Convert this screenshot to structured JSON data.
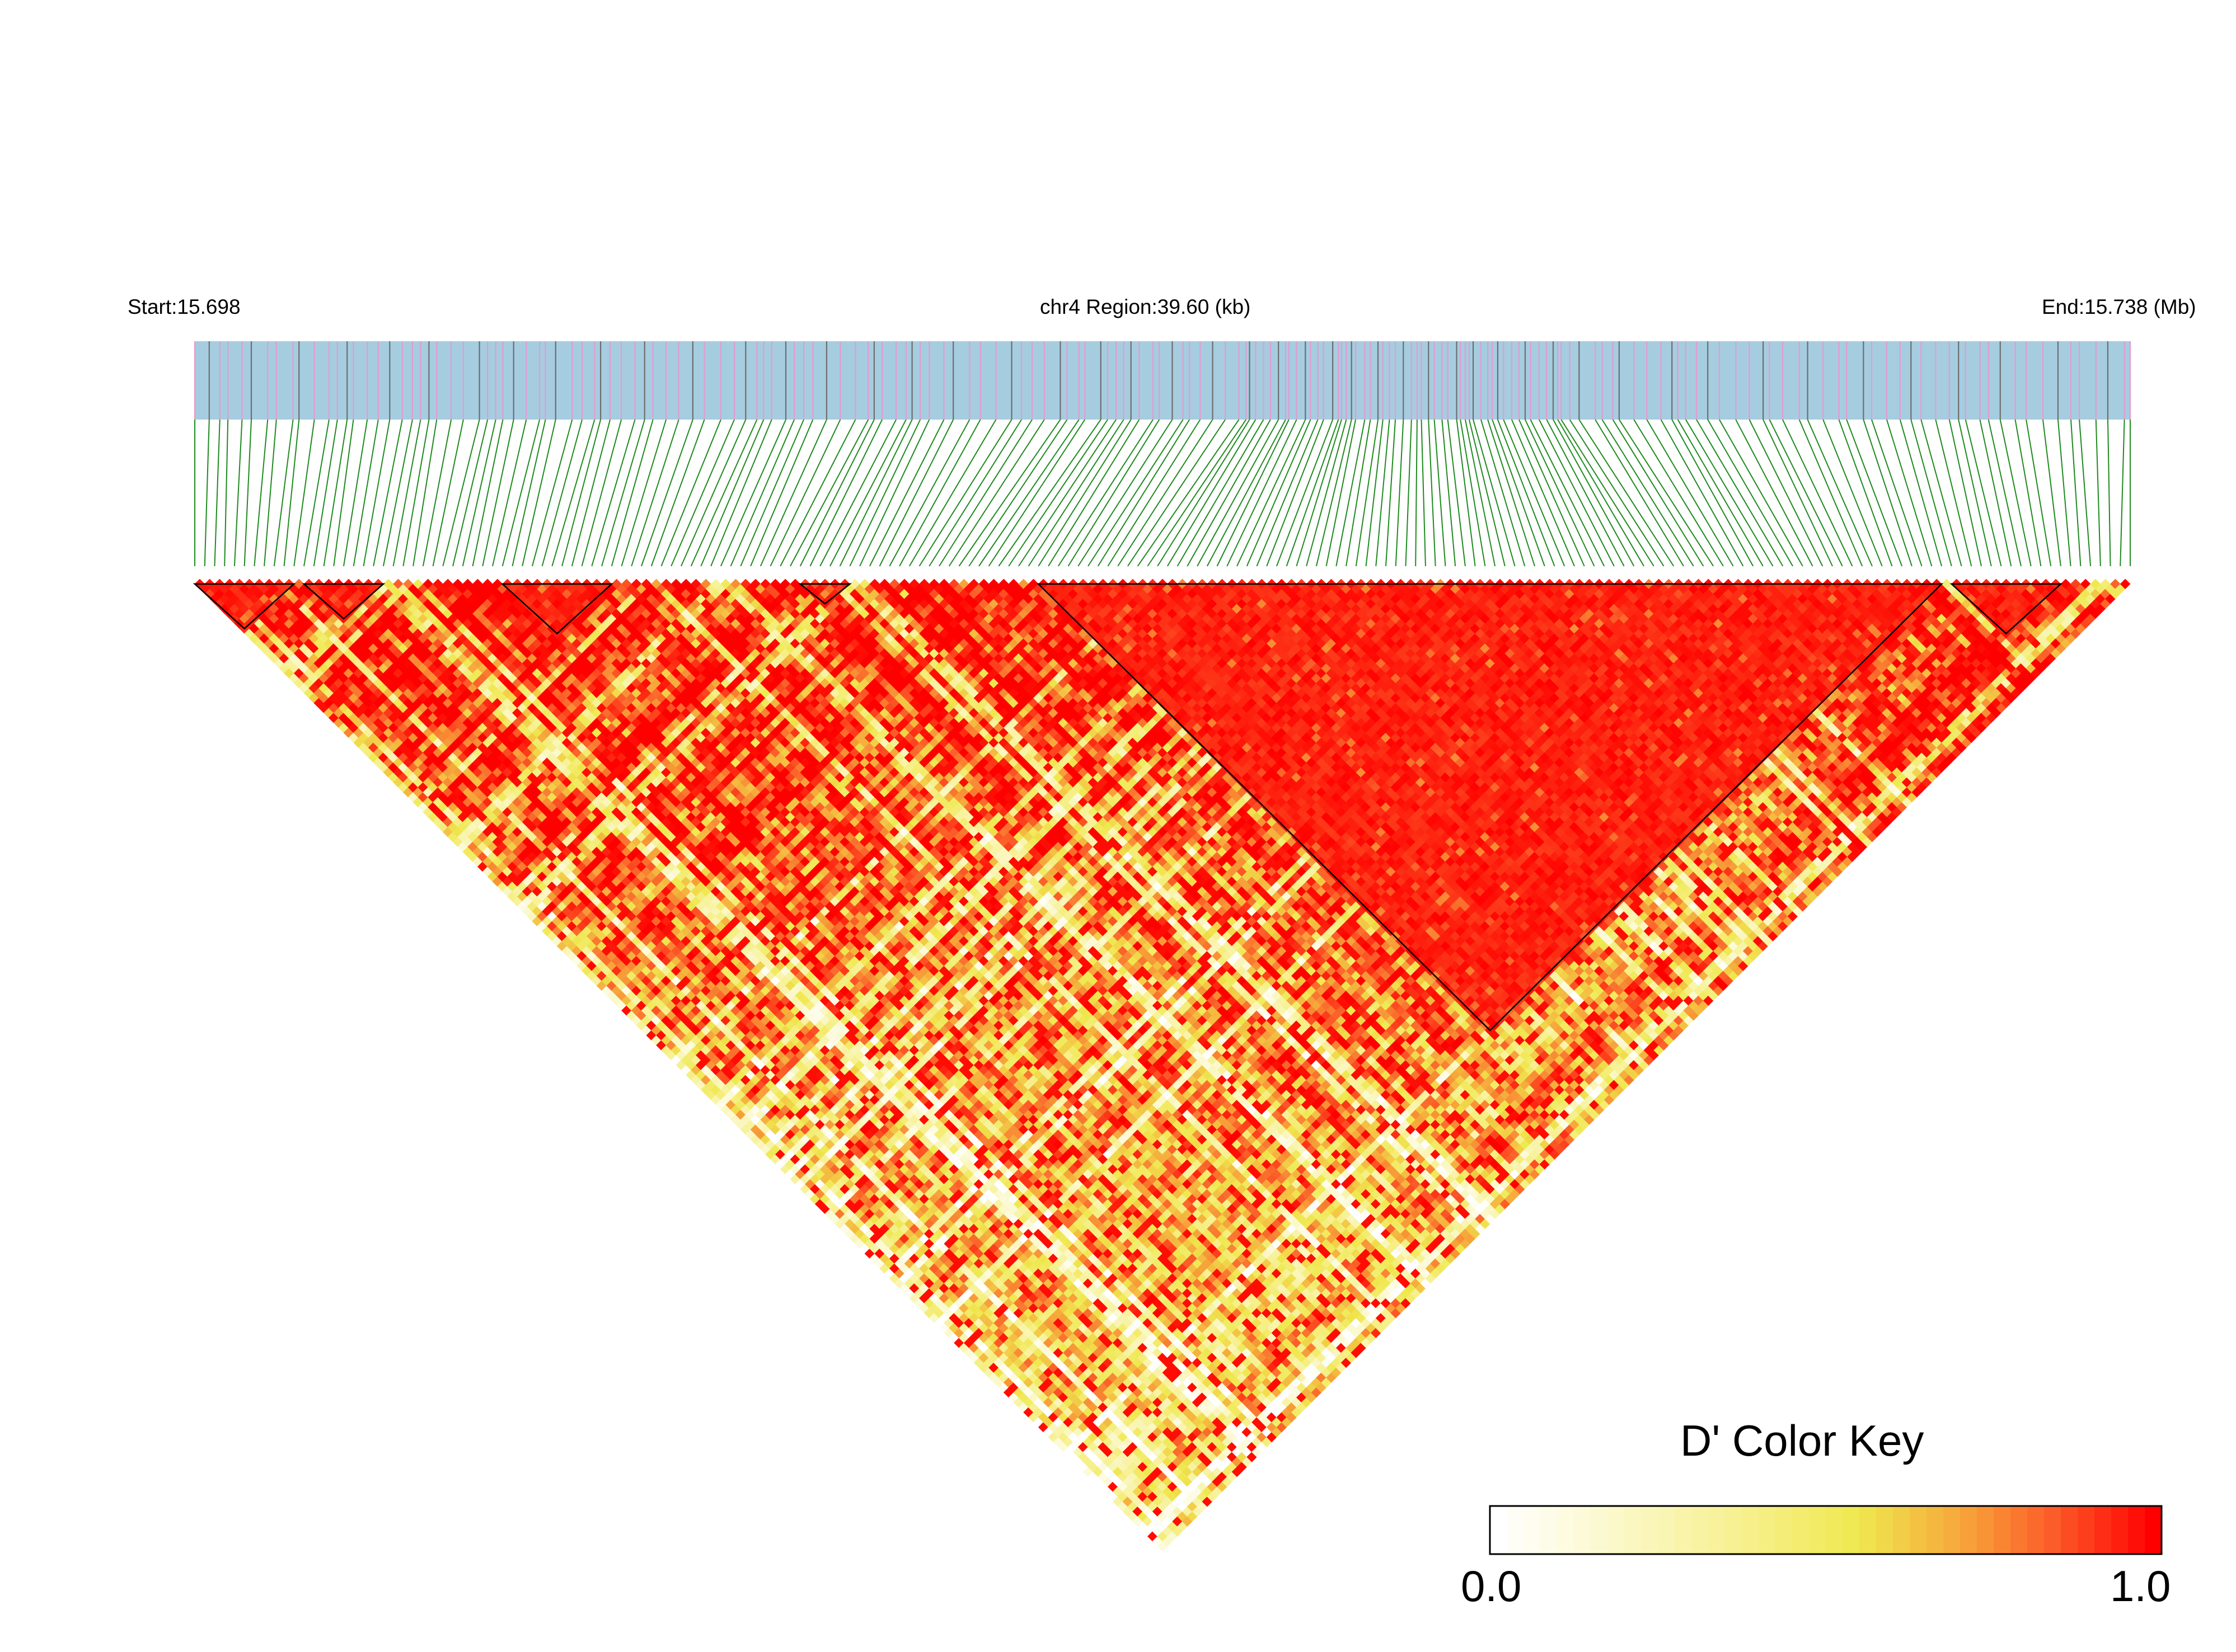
{
  "header": {
    "start_label": "Start:15.698",
    "region_label": "chr4 Region:39.60 (kb)",
    "end_label": "End:15.738 (Mb)"
  },
  "colors": {
    "track_background": "#a6cce0",
    "snp_mark_pink": "#e39bd0",
    "snp_mark_gray": "#6e6e6e",
    "connector_green": "#1f8a1f",
    "ld_low": "#ffffff",
    "ld_mid": "#efe84f",
    "ld_high": "#ff0000",
    "block_outline": "#000000"
  },
  "chart_data": {
    "type": "heatmap",
    "description_kind": "LD heatmap (pairwise D')",
    "chromosome": "chr4",
    "start_mb": 15.698,
    "end_mb": 15.738,
    "region_kb": 39.6,
    "snp_count": 196,
    "value_range": [
      0.0,
      1.0
    ],
    "ld_blocks_snp_index_ranges": [
      [
        0,
        10
      ],
      [
        11,
        19
      ],
      [
        31,
        42
      ],
      [
        61,
        66
      ],
      [
        85,
        176
      ],
      [
        177,
        188
      ]
    ],
    "color_key": {
      "title": "D' Color Key",
      "min_label": "0.0",
      "max_label": "1.0",
      "min": 0.0,
      "max": 1.0
    }
  }
}
